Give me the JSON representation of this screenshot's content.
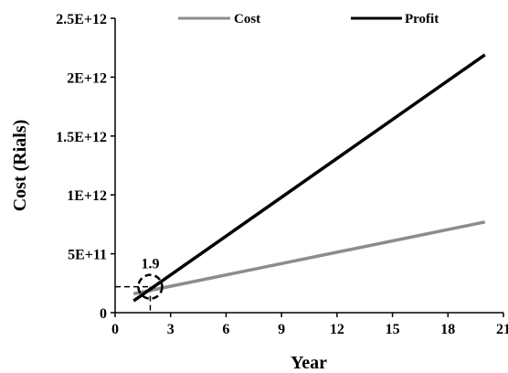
{
  "chart_data": {
    "type": "line",
    "xlabel": "Year",
    "ylabel": "Cost (Rials)",
    "xlim": [
      0,
      21
    ],
    "ylim": [
      0,
      2500000000000
    ],
    "x_ticks": [
      0,
      3,
      6,
      9,
      12,
      15,
      18,
      21
    ],
    "x_tick_labels": [
      "0",
      "3",
      "6",
      "9",
      "12",
      "15",
      "18",
      "21"
    ],
    "y_ticks": [
      0,
      500000000000,
      1000000000000,
      1500000000000,
      2000000000000,
      2500000000000
    ],
    "y_tick_labels": [
      "0",
      "5E+11",
      "1E+12",
      "1.5E+12",
      "2E+12",
      "2.5E+12"
    ],
    "grid": false,
    "legend_position": "top",
    "series": [
      {
        "name": "Cost",
        "color": "#8c8c8c",
        "x": [
          1,
          20
        ],
        "y": [
          160000000000,
          770000000000
        ]
      },
      {
        "name": "Profit",
        "color": "#000000",
        "x": [
          1,
          20
        ],
        "y": [
          100000000000,
          2190000000000
        ]
      }
    ],
    "annotation": {
      "label": "1.9",
      "x": 1.9,
      "y": 220000000000
    }
  }
}
